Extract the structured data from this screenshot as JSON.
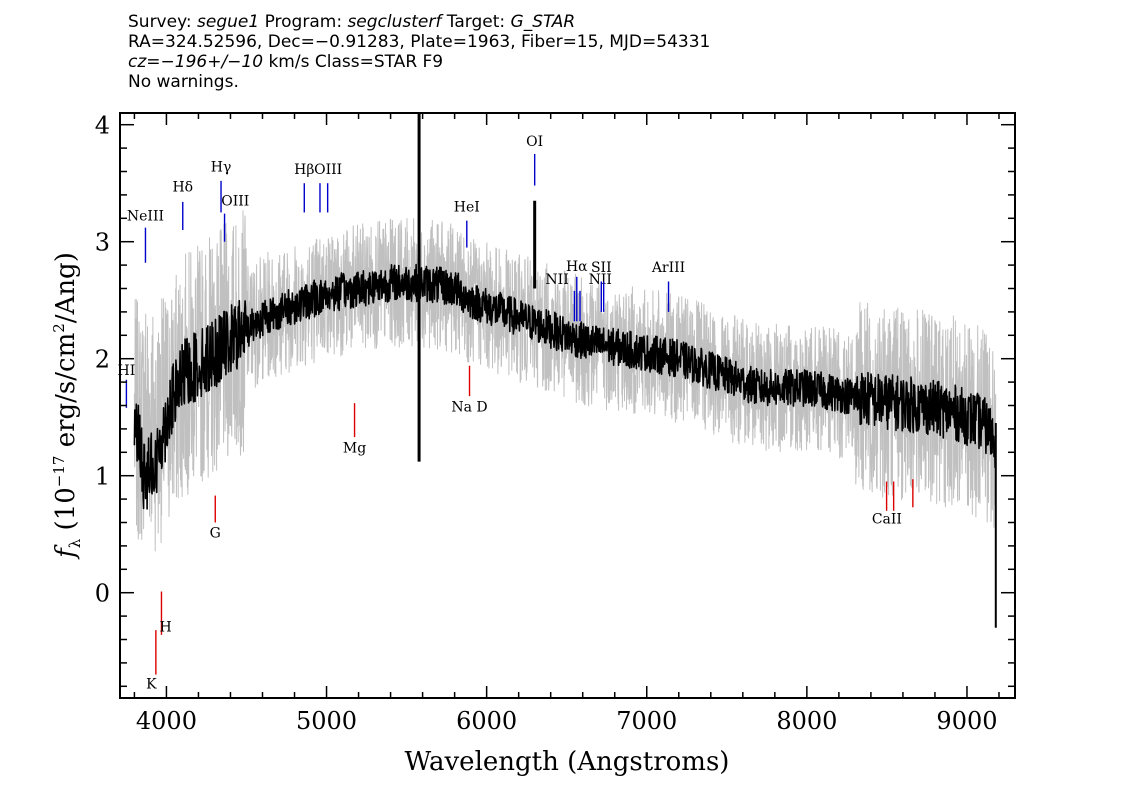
{
  "header": {
    "line1": {
      "a": "Survey: ",
      "survey": "segue1",
      "b": " Program: ",
      "program": "segclusterf",
      "c": " Target: ",
      "target": "G_STAR"
    },
    "line2": "RA=324.52596, Dec=−0.91283, Plate=1963, Fiber=15, MJD=54331",
    "line3": {
      "cz": "cz=−196+/−10",
      "rest": " km/s Class=STAR F9"
    },
    "line4": "No warnings."
  },
  "chart_data": {
    "type": "line",
    "xlabel": "Wavelength (Angstroms)",
    "ylabel": "fλ (10⁻¹⁷ erg/s/cm²/Ang)",
    "xlim": [
      3710,
      9300
    ],
    "ylim": [
      -0.9,
      4.1
    ],
    "xticks": [
      4000,
      5000,
      6000,
      7000,
      8000,
      9000
    ],
    "yticks": [
      0,
      1,
      2,
      3,
      4
    ],
    "grid": false,
    "series": [
      {
        "role": "error",
        "color": "#c0c0c0",
        "x": [
          3800,
          3840,
          3870,
          3900,
          3930,
          3960,
          3990,
          4020,
          4060,
          4100,
          4150,
          4200,
          4250,
          4300,
          4350,
          4400,
          4450,
          4500,
          4600,
          4700,
          4800,
          4900,
          5000,
          5200,
          5400,
          5600,
          5800,
          5900,
          6000,
          6200,
          6300,
          6500,
          6600,
          6800,
          7000,
          7200,
          7500,
          7700,
          8000,
          8400,
          8700,
          8900,
          9100,
          9180
        ],
        "y": [
          1.5,
          1.4,
          1.6,
          1.5,
          1.4,
          1.45,
          1.55,
          1.6,
          1.7,
          1.85,
          1.9,
          1.95,
          2.0,
          2.05,
          2.1,
          2.15,
          2.2,
          2.25,
          2.35,
          2.4,
          2.45,
          2.5,
          2.55,
          2.6,
          2.65,
          2.65,
          2.6,
          2.5,
          2.45,
          2.35,
          2.3,
          2.2,
          2.15,
          2.1,
          2.05,
          2.0,
          1.85,
          1.75,
          1.75,
          1.65,
          1.6,
          1.55,
          1.45,
          1.3
        ]
      },
      {
        "role": "flux",
        "color": "#000000",
        "x": [
          3800,
          3840,
          3870,
          3900,
          3930,
          3960,
          3990,
          4020,
          4060,
          4100,
          4150,
          4200,
          4250,
          4300,
          4350,
          4400,
          4450,
          4500,
          4600,
          4700,
          4800,
          4900,
          5000,
          5200,
          5400,
          5600,
          5800,
          5900,
          6000,
          6200,
          6300,
          6500,
          6600,
          6800,
          7000,
          7200,
          7500,
          7700,
          8000,
          8400,
          8700,
          8900,
          9100,
          9180
        ],
        "y": [
          1.5,
          1.2,
          0.9,
          1.2,
          1.0,
          1.3,
          1.4,
          1.6,
          1.7,
          1.85,
          1.9,
          1.95,
          2.0,
          2.05,
          2.1,
          2.15,
          2.2,
          2.25,
          2.35,
          2.4,
          2.45,
          2.5,
          2.55,
          2.6,
          2.65,
          2.65,
          2.6,
          2.5,
          2.45,
          2.35,
          2.3,
          2.2,
          2.15,
          2.1,
          2.05,
          2.0,
          1.85,
          1.75,
          1.75,
          1.65,
          1.6,
          1.55,
          1.45,
          1.3
        ]
      }
    ],
    "features": [
      {
        "x": 5578,
        "y1": 1.12,
        "y2": 4.15,
        "color": "#000000",
        "w": 3
      },
      {
        "x": 6300,
        "y1": 2.6,
        "y2": 3.35,
        "color": "#000000",
        "w": 3
      },
      {
        "x": 9180,
        "y1": -0.3,
        "y2": 1.45,
        "color": "#000000",
        "w": 2
      }
    ],
    "emission_lines": [
      {
        "label": "NeIII",
        "x": 3869,
        "y1": 2.82,
        "y2": 3.12,
        "tx": 3869,
        "ty": 3.18
      },
      {
        "label": "Hδ",
        "x": 4102,
        "y1": 3.1,
        "y2": 3.34,
        "tx": 4102,
        "ty": 3.43
      },
      {
        "label": "Hγ",
        "x": 4341,
        "y1": 3.25,
        "y2": 3.52,
        "tx": 4341,
        "ty": 3.6
      },
      {
        "label": "OIII",
        "x": 4363,
        "y1": 3.0,
        "y2": 3.24,
        "tx": 4430,
        "ty": 3.31
      },
      {
        "label": "Hβ",
        "x": 4861,
        "y1": 3.25,
        "y2": 3.5,
        "tx": 4861,
        "ty": 3.58
      },
      {
        "label": "OIII",
        "x": 4959,
        "y1": 3.25,
        "y2": 3.5,
        "tx": 5010,
        "ty": 3.58
      },
      {
        "label": "OIII",
        "x": 5007,
        "y1": 3.25,
        "y2": 3.5,
        "tx": 5010,
        "ty": 3.58
      },
      {
        "label": "HeI",
        "x": 5876,
        "y1": 2.95,
        "y2": 3.18,
        "tx": 5876,
        "ty": 3.26
      },
      {
        "label": "OI",
        "x": 6300,
        "y1": 3.48,
        "y2": 3.75,
        "tx": 6300,
        "ty": 3.82
      },
      {
        "label": "NII",
        "x": 6548,
        "y1": 2.32,
        "y2": 2.58,
        "tx": 6440,
        "ty": 2.64
      },
      {
        "label": "Hα",
        "x": 6563,
        "y1": 2.32,
        "y2": 2.7,
        "tx": 6563,
        "ty": 2.75
      },
      {
        "label": "NII",
        "x": 6583,
        "y1": 2.32,
        "y2": 2.58,
        "tx": 6710,
        "ty": 2.64
      },
      {
        "label": "SII",
        "x": 6716,
        "y1": 2.4,
        "y2": 2.66,
        "tx": 6716,
        "ty": 2.74
      },
      {
        "label": "SII",
        "x": 6731,
        "y1": 2.4,
        "y2": 2.66,
        "tx": 6716,
        "ty": 2.74
      },
      {
        "label": "ArIII",
        "x": 7136,
        "y1": 2.4,
        "y2": 2.66,
        "tx": 7136,
        "ty": 2.74
      },
      {
        "label": "HI",
        "x": 3750,
        "y1": 1.58,
        "y2": 1.82,
        "tx": 3750,
        "ty": 1.86
      }
    ],
    "absorption_lines": [
      {
        "label": "K",
        "x": 3934,
        "y1": -0.7,
        "y2": -0.32,
        "tx": 3906,
        "ty": -0.82
      },
      {
        "label": "H",
        "x": 3969,
        "y1": -0.36,
        "y2": 0.01,
        "tx": 3995,
        "ty": -0.33
      },
      {
        "label": "G",
        "x": 4305,
        "y1": 0.6,
        "y2": 0.83,
        "tx": 4305,
        "ty": 0.47
      },
      {
        "label": "Mg",
        "x": 5175,
        "y1": 1.33,
        "y2": 1.62,
        "tx": 5175,
        "ty": 1.2
      },
      {
        "label": "Na D",
        "x": 5893,
        "y1": 1.68,
        "y2": 1.94,
        "tx": 5893,
        "ty": 1.55
      },
      {
        "label": "CaII",
        "x": 8498,
        "y1": 0.7,
        "y2": 0.95,
        "tx": 8500,
        "ty": 0.59
      },
      {
        "label": "CaII",
        "x": 8542,
        "y1": 0.7,
        "y2": 0.95,
        "tx": 8500,
        "ty": 0.59
      },
      {
        "label": "CaII",
        "x": 8662,
        "y1": 0.73,
        "y2": 0.97,
        "tx": 8500,
        "ty": 0.59
      }
    ]
  }
}
